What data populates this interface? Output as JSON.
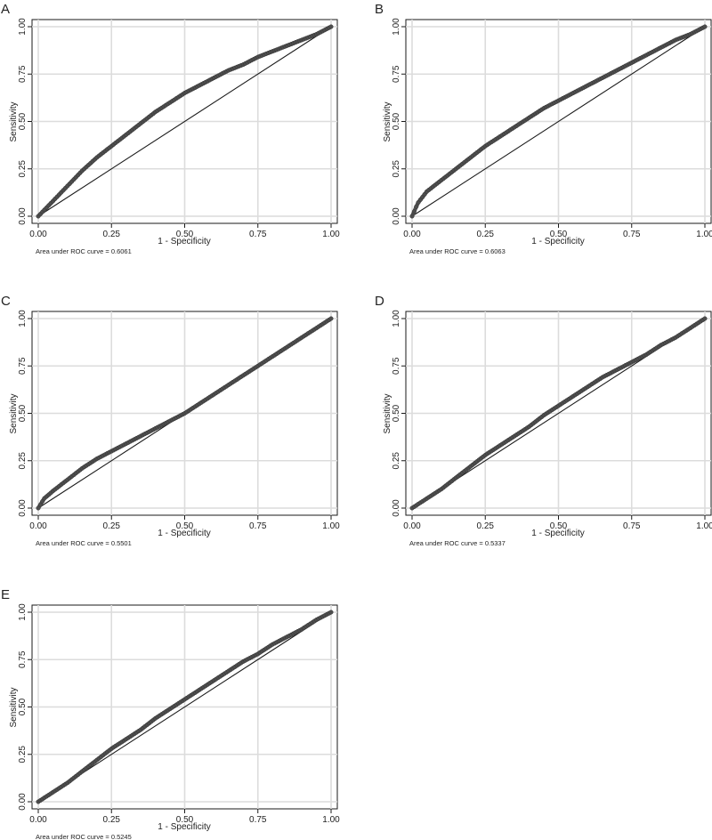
{
  "chart_data": [
    {
      "type": "line",
      "panel_label": "A",
      "xlabel": "1 - Specificity",
      "ylabel": "Sensitivity",
      "xlim": [
        0,
        1
      ],
      "ylim": [
        0,
        1
      ],
      "ticks": [
        "0.00",
        "0.25",
        "0.50",
        "0.75",
        "1.00"
      ],
      "grid": true,
      "auc_text": "Area under ROC curve = 0.6061",
      "series": [
        {
          "x": [
            0,
            0.05,
            0.1,
            0.15,
            0.2,
            0.25,
            0.3,
            0.35,
            0.4,
            0.45,
            0.5,
            0.55,
            0.6,
            0.65,
            0.7,
            0.75,
            0.8,
            0.85,
            0.9,
            0.95,
            1.0
          ],
          "y": [
            0,
            0.08,
            0.16,
            0.24,
            0.31,
            0.37,
            0.43,
            0.49,
            0.55,
            0.6,
            0.65,
            0.69,
            0.73,
            0.77,
            0.8,
            0.84,
            0.87,
            0.9,
            0.93,
            0.96,
            1.0
          ]
        },
        {
          "x": [
            0,
            1
          ],
          "y": [
            0,
            1
          ]
        }
      ]
    },
    {
      "type": "line",
      "panel_label": "B",
      "xlabel": "1 - Specificity",
      "ylabel": "Sensitivity",
      "xlim": [
        0,
        1
      ],
      "ylim": [
        0,
        1
      ],
      "ticks": [
        "0.00",
        "0.25",
        "0.50",
        "0.75",
        "1.00"
      ],
      "grid": true,
      "auc_text": "Area under ROC curve = 0.6063",
      "series": [
        {
          "x": [
            0,
            0.02,
            0.05,
            0.1,
            0.15,
            0.2,
            0.25,
            0.3,
            0.35,
            0.4,
            0.45,
            0.5,
            0.55,
            0.6,
            0.65,
            0.7,
            0.75,
            0.8,
            0.85,
            0.9,
            0.95,
            1.0
          ],
          "y": [
            0,
            0.07,
            0.13,
            0.19,
            0.25,
            0.31,
            0.37,
            0.42,
            0.47,
            0.52,
            0.57,
            0.61,
            0.65,
            0.69,
            0.73,
            0.77,
            0.81,
            0.85,
            0.89,
            0.93,
            0.96,
            1.0
          ]
        },
        {
          "x": [
            0,
            1
          ],
          "y": [
            0,
            1
          ]
        }
      ]
    },
    {
      "type": "line",
      "panel_label": "C",
      "xlabel": "1 - Specificity",
      "ylabel": "Sensitivity",
      "xlim": [
        0,
        1
      ],
      "ylim": [
        0,
        1
      ],
      "ticks": [
        "0.00",
        "0.25",
        "0.50",
        "0.75",
        "1.00"
      ],
      "grid": true,
      "auc_text": "Area under ROC curve = 0.5501",
      "series": [
        {
          "x": [
            0,
            0.02,
            0.05,
            0.1,
            0.15,
            0.2,
            0.25,
            0.3,
            0.35,
            0.4,
            0.45,
            0.5,
            0.55,
            0.6,
            0.65,
            0.7,
            0.75,
            0.8,
            0.85,
            0.9,
            0.95,
            1.0
          ],
          "y": [
            0,
            0.05,
            0.09,
            0.15,
            0.21,
            0.26,
            0.3,
            0.34,
            0.38,
            0.42,
            0.46,
            0.5,
            0.55,
            0.6,
            0.65,
            0.7,
            0.75,
            0.8,
            0.85,
            0.9,
            0.95,
            1.0
          ]
        },
        {
          "x": [
            0,
            1
          ],
          "y": [
            0,
            1
          ]
        }
      ]
    },
    {
      "type": "line",
      "panel_label": "D",
      "xlabel": "1 - Specificity",
      "ylabel": "Sensitivity",
      "xlim": [
        0,
        1
      ],
      "ylim": [
        0,
        1
      ],
      "ticks": [
        "0.00",
        "0.25",
        "0.50",
        "0.75",
        "1.00"
      ],
      "grid": true,
      "auc_text": "Area under ROC curve = 0.5337",
      "series": [
        {
          "x": [
            0,
            0.05,
            0.1,
            0.15,
            0.2,
            0.25,
            0.3,
            0.35,
            0.4,
            0.45,
            0.5,
            0.55,
            0.6,
            0.65,
            0.7,
            0.75,
            0.8,
            0.85,
            0.9,
            0.95,
            1.0
          ],
          "y": [
            0,
            0.05,
            0.1,
            0.16,
            0.22,
            0.28,
            0.33,
            0.38,
            0.43,
            0.49,
            0.54,
            0.59,
            0.64,
            0.69,
            0.73,
            0.77,
            0.81,
            0.86,
            0.9,
            0.95,
            1.0
          ]
        },
        {
          "x": [
            0,
            1
          ],
          "y": [
            0,
            1
          ]
        }
      ]
    },
    {
      "type": "line",
      "panel_label": "E",
      "xlabel": "1 - Specificity",
      "ylabel": "Sensitivity",
      "xlim": [
        0,
        1
      ],
      "ylim": [
        0,
        1
      ],
      "ticks": [
        "0.00",
        "0.25",
        "0.50",
        "0.75",
        "1.00"
      ],
      "grid": true,
      "auc_text": "Area under ROC curve = 0.5245",
      "series": [
        {
          "x": [
            0,
            0.05,
            0.1,
            0.15,
            0.2,
            0.25,
            0.3,
            0.35,
            0.4,
            0.45,
            0.5,
            0.55,
            0.6,
            0.65,
            0.7,
            0.75,
            0.8,
            0.85,
            0.9,
            0.95,
            1.0
          ],
          "y": [
            0,
            0.05,
            0.1,
            0.16,
            0.22,
            0.28,
            0.33,
            0.38,
            0.44,
            0.49,
            0.54,
            0.59,
            0.64,
            0.69,
            0.74,
            0.78,
            0.83,
            0.87,
            0.91,
            0.96,
            1.0
          ]
        },
        {
          "x": [
            0,
            1
          ],
          "y": [
            0,
            1
          ]
        }
      ]
    }
  ]
}
